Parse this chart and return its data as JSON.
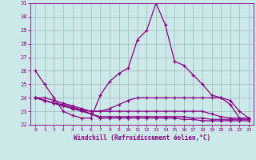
{
  "xlabel": "Windchill (Refroidissement éolien,°C)",
  "ylabel": "",
  "xlim": [
    -0.5,
    23.5
  ],
  "ylim": [
    22,
    31
  ],
  "yticks": [
    22,
    23,
    24,
    25,
    26,
    27,
    28,
    29,
    30,
    31
  ],
  "xticks": [
    0,
    1,
    2,
    3,
    4,
    5,
    6,
    7,
    8,
    9,
    10,
    11,
    12,
    13,
    14,
    15,
    16,
    17,
    18,
    19,
    20,
    21,
    22,
    23
  ],
  "background_color": "#cce8e8",
  "grid_color": "#a0b8b8",
  "line_color": "#880088",
  "line1": [
    26,
    25,
    24,
    23,
    22.7,
    22.5,
    22.5,
    24.2,
    25.2,
    25.8,
    26.2,
    28.3,
    29.0,
    31.0,
    29.4,
    26.7,
    26.4,
    25.7,
    25.0,
    24.2,
    24.0,
    23.5,
    22.5,
    22.5
  ],
  "line2": [
    24,
    24,
    23.8,
    23.6,
    23.4,
    23.2,
    23.0,
    23.0,
    23.2,
    23.5,
    23.8,
    24.0,
    24.0,
    24.0,
    24.0,
    24.0,
    24.0,
    24.0,
    24.0,
    24.0,
    24.0,
    23.8,
    23.0,
    22.5
  ],
  "line3": [
    24,
    23.8,
    23.6,
    23.4,
    23.2,
    23.1,
    23.0,
    23.0,
    23.0,
    23.0,
    23.0,
    23.0,
    23.0,
    23.0,
    23.0,
    23.0,
    23.0,
    23.0,
    23.0,
    22.8,
    22.6,
    22.5,
    22.5,
    22.5
  ],
  "line4": [
    24,
    23.8,
    23.6,
    23.4,
    23.2,
    23.0,
    22.8,
    22.6,
    22.6,
    22.6,
    22.6,
    22.6,
    22.6,
    22.6,
    22.6,
    22.6,
    22.6,
    22.5,
    22.5,
    22.4,
    22.4,
    22.4,
    22.4,
    22.4
  ],
  "line5": [
    24,
    23.8,
    23.6,
    23.5,
    23.3,
    23.1,
    22.8,
    22.5,
    22.5,
    22.5,
    22.5,
    22.5,
    22.5,
    22.5,
    22.5,
    22.5,
    22.4,
    22.4,
    22.3,
    22.3,
    22.3,
    22.3,
    22.3,
    22.3
  ]
}
